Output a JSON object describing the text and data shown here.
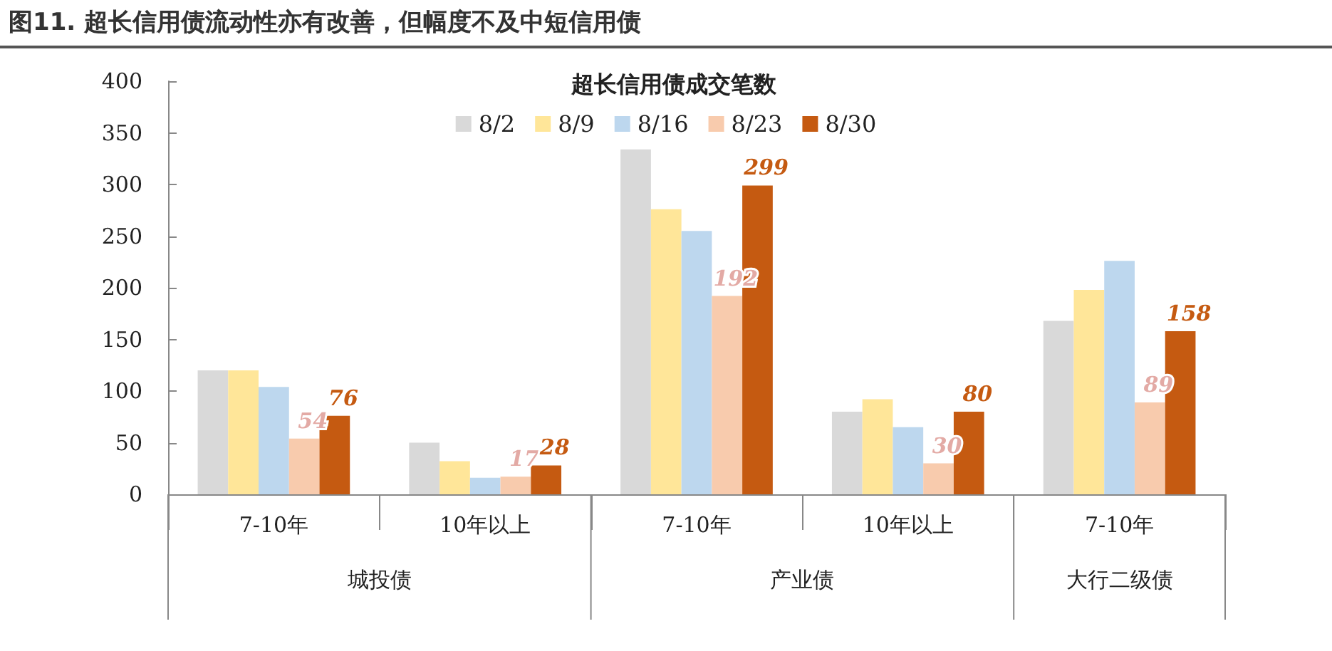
{
  "chart_data": {
    "type": "bar",
    "title": "图11. 超长信用债流动性亦有改善，但幅度不及中短信用债",
    "subtitle": "超长信用债成交笔数",
    "categories": [
      "7-10年",
      "10年以上",
      "7-10年",
      "10年以上",
      "7-10年"
    ],
    "annotations": [
      "城投债",
      "产业债",
      "大行二级债"
    ],
    "series": [
      {
        "name": "8/2",
        "color": "#d9d9d9",
        "values": [
          120,
          50,
          334,
          80,
          168
        ]
      },
      {
        "name": "8/9",
        "color": "#ffe699",
        "values": [
          120,
          32,
          276,
          92,
          198
        ]
      },
      {
        "name": "8/16",
        "color": "#bdd7ee",
        "values": [
          104,
          16,
          255,
          65,
          226
        ]
      },
      {
        "name": "8/23",
        "color": "#f8cbad",
        "values": [
          54,
          17,
          192,
          30,
          89
        ],
        "value_labels": [
          "54",
          "17",
          "192",
          "30",
          "89"
        ]
      },
      {
        "name": "8/30",
        "color": "#c55a11",
        "values": [
          76,
          28,
          299,
          80,
          158
        ],
        "value_labels": [
          "76",
          "28",
          "299",
          "80",
          "158"
        ]
      }
    ],
    "ylim": [
      0,
      400
    ],
    "yticks": [
      0,
      50,
      100,
      150,
      200,
      250,
      300,
      350,
      400
    ],
    "grid": false,
    "legend": "top"
  }
}
